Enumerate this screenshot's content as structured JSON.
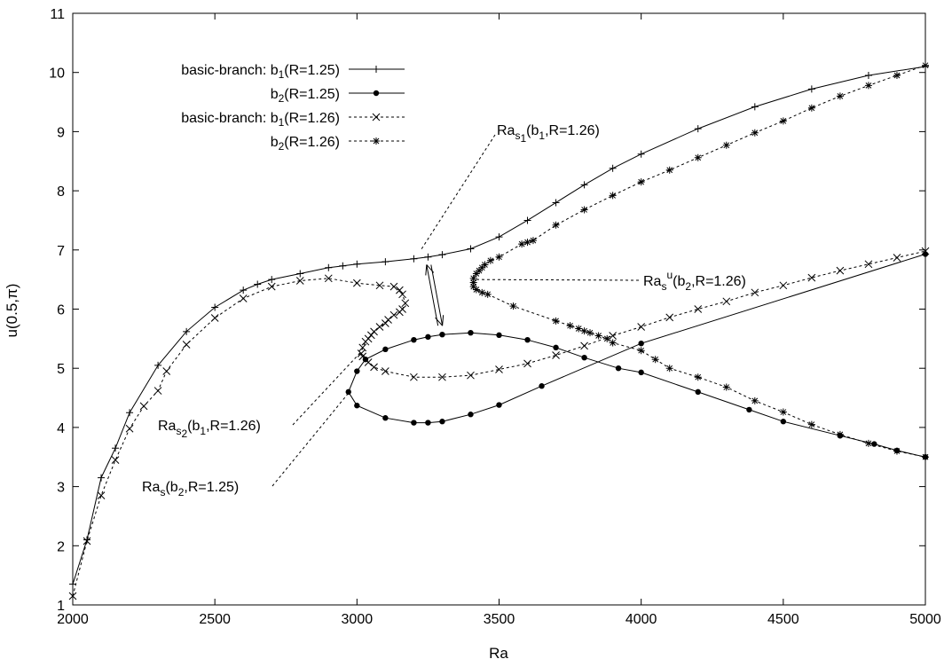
{
  "chart_data": {
    "type": "line",
    "xlabel": "Ra",
    "ylabel": "u(0.5,π)",
    "xlim": [
      2000,
      5000
    ],
    "ylim": [
      1,
      11
    ],
    "xticks": [
      2000,
      2500,
      3000,
      3500,
      4000,
      4500,
      5000
    ],
    "yticks": [
      1,
      2,
      3,
      4,
      5,
      6,
      7,
      8,
      9,
      10,
      11
    ],
    "grid": false,
    "legend_position": "top-left",
    "series": [
      {
        "name": "basic-branch: b1(R=1.25)",
        "label_prefix": "basic-branch: b",
        "label_sub": "1",
        "label_suffix": "(R=1.25)",
        "style": "solid",
        "marker": "plus",
        "points": [
          [
            2000,
            1.35
          ],
          [
            2050,
            2.1
          ],
          [
            2100,
            3.15
          ],
          [
            2150,
            3.65
          ],
          [
            2200,
            4.25
          ],
          [
            2300,
            5.05
          ],
          [
            2400,
            5.62
          ],
          [
            2500,
            6.03
          ],
          [
            2600,
            6.32
          ],
          [
            2650,
            6.42
          ],
          [
            2700,
            6.5
          ],
          [
            2800,
            6.6
          ],
          [
            2900,
            6.7
          ],
          [
            2950,
            6.73
          ],
          [
            3000,
            6.76
          ],
          [
            3100,
            6.8
          ],
          [
            3200,
            6.85
          ],
          [
            3250,
            6.88
          ],
          [
            3300,
            6.92
          ],
          [
            3400,
            7.02
          ],
          [
            3500,
            7.22
          ],
          [
            3600,
            7.5
          ],
          [
            3700,
            7.8
          ],
          [
            3800,
            8.1
          ],
          [
            3900,
            8.38
          ],
          [
            4000,
            8.62
          ],
          [
            4200,
            9.05
          ],
          [
            4400,
            9.42
          ],
          [
            4600,
            9.72
          ],
          [
            4800,
            9.95
          ],
          [
            5000,
            10.1
          ]
        ]
      },
      {
        "name": "b2(R=1.25)",
        "label_prefix": "b",
        "label_sub": "2",
        "label_suffix": "(R=1.25)",
        "style": "solid",
        "marker": "dot",
        "points": [
          [
            5000,
            6.93
          ],
          [
            4000,
            5.42
          ],
          [
            3650,
            4.7
          ],
          [
            3500,
            4.38
          ],
          [
            3400,
            4.22
          ],
          [
            3300,
            4.1
          ],
          [
            3250,
            4.08
          ],
          [
            3200,
            4.08
          ],
          [
            3100,
            4.16
          ],
          [
            3000,
            4.37
          ],
          [
            2970,
            4.6
          ],
          [
            3000,
            4.95
          ],
          [
            3030,
            5.15
          ],
          [
            3100,
            5.32
          ],
          [
            3200,
            5.48
          ],
          [
            3250,
            5.53
          ],
          [
            3300,
            5.57
          ],
          [
            3400,
            5.6
          ],
          [
            3500,
            5.56
          ],
          [
            3600,
            5.48
          ],
          [
            3700,
            5.35
          ],
          [
            3800,
            5.18
          ],
          [
            3920,
            5.0
          ],
          [
            4000,
            4.93
          ],
          [
            4200,
            4.6
          ],
          [
            4380,
            4.3
          ],
          [
            4500,
            4.1
          ],
          [
            4700,
            3.86
          ],
          [
            4820,
            3.72
          ],
          [
            4900,
            3.61
          ],
          [
            5000,
            3.5
          ]
        ]
      },
      {
        "name": "basic-branch: b1(R=1.26)",
        "label_prefix": "basic-branch: b",
        "label_sub": "1",
        "label_suffix": "(R=1.26)",
        "style": "dashed",
        "marker": "cross",
        "points": [
          [
            2000,
            1.15
          ],
          [
            2050,
            2.08
          ],
          [
            2100,
            2.85
          ],
          [
            2150,
            3.45
          ],
          [
            2200,
            3.98
          ],
          [
            2250,
            4.36
          ],
          [
            2300,
            4.62
          ],
          [
            2330,
            4.95
          ],
          [
            2400,
            5.4
          ],
          [
            2500,
            5.85
          ],
          [
            2600,
            6.18
          ],
          [
            2700,
            6.38
          ],
          [
            2800,
            6.48
          ],
          [
            2900,
            6.52
          ],
          [
            3000,
            6.44
          ],
          [
            3080,
            6.4
          ],
          [
            3130,
            6.38
          ],
          [
            3150,
            6.32
          ],
          [
            3160,
            6.25
          ],
          [
            3170,
            6.1
          ],
          [
            3160,
            6.0
          ],
          [
            3150,
            5.95
          ],
          [
            3130,
            5.9
          ],
          [
            3110,
            5.82
          ],
          [
            3100,
            5.76
          ],
          [
            3080,
            5.7
          ],
          [
            3060,
            5.62
          ],
          [
            3050,
            5.56
          ],
          [
            3040,
            5.5
          ],
          [
            3030,
            5.45
          ],
          [
            3020,
            5.35
          ],
          [
            3015,
            5.25
          ],
          [
            3020,
            5.2
          ],
          [
            3040,
            5.1
          ],
          [
            3060,
            5.02
          ],
          [
            3100,
            4.95
          ],
          [
            3200,
            4.85
          ],
          [
            3300,
            4.85
          ],
          [
            3400,
            4.88
          ],
          [
            3500,
            4.98
          ],
          [
            3600,
            5.08
          ],
          [
            3700,
            5.22
          ],
          [
            3800,
            5.38
          ],
          [
            3900,
            5.55
          ],
          [
            4000,
            5.7
          ],
          [
            4100,
            5.86
          ],
          [
            4200,
            6.0
          ],
          [
            4300,
            6.13
          ],
          [
            4400,
            6.28
          ],
          [
            4500,
            6.4
          ],
          [
            4600,
            6.53
          ],
          [
            4700,
            6.65
          ],
          [
            4800,
            6.76
          ],
          [
            4900,
            6.87
          ],
          [
            5000,
            6.98
          ]
        ]
      },
      {
        "name": "b2(R=1.26)",
        "label_prefix": "b",
        "label_sub": "2",
        "label_suffix": "(R=1.26)",
        "style": "dashed",
        "marker": "star",
        "points": [
          [
            5000,
            10.12
          ],
          [
            4900,
            9.95
          ],
          [
            4800,
            9.78
          ],
          [
            4700,
            9.6
          ],
          [
            4600,
            9.4
          ],
          [
            4500,
            9.18
          ],
          [
            4400,
            8.98
          ],
          [
            4300,
            8.77
          ],
          [
            4200,
            8.56
          ],
          [
            4100,
            8.35
          ],
          [
            4000,
            8.15
          ],
          [
            3900,
            7.92
          ],
          [
            3800,
            7.68
          ],
          [
            3700,
            7.42
          ],
          [
            3620,
            7.16
          ],
          [
            3600,
            7.13
          ],
          [
            3580,
            7.1
          ],
          [
            3500,
            6.88
          ],
          [
            3470,
            6.82
          ],
          [
            3450,
            6.75
          ],
          [
            3440,
            6.7
          ],
          [
            3430,
            6.65
          ],
          [
            3420,
            6.6
          ],
          [
            3410,
            6.52
          ],
          [
            3410,
            6.45
          ],
          [
            3410,
            6.38
          ],
          [
            3420,
            6.33
          ],
          [
            3440,
            6.28
          ],
          [
            3460,
            6.25
          ],
          [
            3550,
            6.05
          ],
          [
            3700,
            5.8
          ],
          [
            3750,
            5.72
          ],
          [
            3780,
            5.67
          ],
          [
            3800,
            5.63
          ],
          [
            3820,
            5.6
          ],
          [
            3850,
            5.55
          ],
          [
            3880,
            5.5
          ],
          [
            3900,
            5.43
          ],
          [
            4000,
            5.3
          ],
          [
            4050,
            5.15
          ],
          [
            4100,
            5.0
          ],
          [
            4200,
            4.85
          ],
          [
            4300,
            4.68
          ],
          [
            4400,
            4.45
          ],
          [
            4500,
            4.26
          ],
          [
            4600,
            4.05
          ],
          [
            4700,
            3.88
          ],
          [
            4800,
            3.73
          ],
          [
            4900,
            3.6
          ],
          [
            5000,
            3.5
          ]
        ]
      }
    ],
    "annotations": [
      {
        "name": "ras1",
        "text_prefix": "Ra",
        "sub": "s",
        "subsub": "1",
        "text_suffix": "(b",
        "sub2": "1",
        "text_tail": ",R=1.26)",
        "anchor": [
          3225,
          7.0
        ]
      },
      {
        "name": "rasu",
        "text_prefix": "Ra",
        "sub": "s",
        "sup": "u",
        "text_suffix": "(b",
        "sub2": "2",
        "text_tail": ",R=1.26)",
        "anchor": [
          3420,
          6.5
        ]
      },
      {
        "name": "ras2",
        "text_prefix": "Ra",
        "sub": "s",
        "subsub": "2",
        "text_suffix": "(b",
        "sub2": "1",
        "text_tail": ",R=1.26)",
        "anchor": [
          3015,
          5.28
        ]
      },
      {
        "name": "ras",
        "text_prefix": "Ra",
        "sub": "s",
        "text_suffix": "(b",
        "sub2": "2",
        "text_tail": ",R=1.25)",
        "anchor": [
          2970,
          4.58
        ]
      }
    ]
  }
}
